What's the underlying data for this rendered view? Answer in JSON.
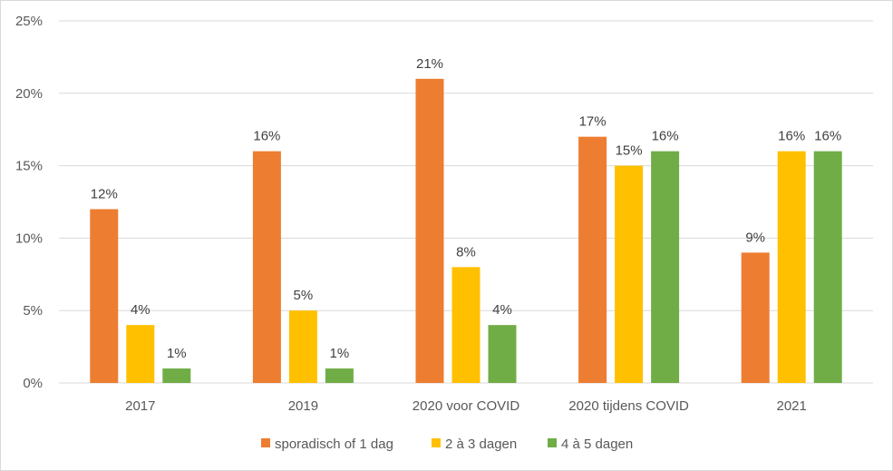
{
  "chart_data": {
    "type": "bar",
    "title": "",
    "xlabel": "",
    "ylabel": "",
    "categories": [
      "2017",
      "2019",
      "2020 voor COVID",
      "2020 tijdens COVID",
      "2021"
    ],
    "series": [
      {
        "name": "sporadisch of 1 dag",
        "color": "#ed7d31",
        "values": [
          12,
          16,
          21,
          17,
          9
        ],
        "labels": [
          "12%",
          "16%",
          "21%",
          "17%",
          "9%"
        ]
      },
      {
        "name": "2 à 3 dagen",
        "color": "#ffc000",
        "values": [
          4,
          5,
          8,
          15,
          16
        ],
        "labels": [
          "4%",
          "5%",
          "8%",
          "15%",
          "16%"
        ]
      },
      {
        "name": "4 à 5 dagen",
        "color": "#70ad47",
        "values": [
          1,
          1,
          4,
          16,
          16
        ],
        "labels": [
          "1%",
          "1%",
          "4%",
          "16%",
          "16%"
        ]
      }
    ],
    "ylim": [
      0,
      25
    ],
    "yticks": [
      0,
      5,
      10,
      15,
      20,
      25
    ],
    "ytick_labels": [
      "0%",
      "5%",
      "10%",
      "15%",
      "20%",
      "25%"
    ],
    "grid": true,
    "gridline_color": "#d9d9d9",
    "legend_position": "bottom"
  }
}
